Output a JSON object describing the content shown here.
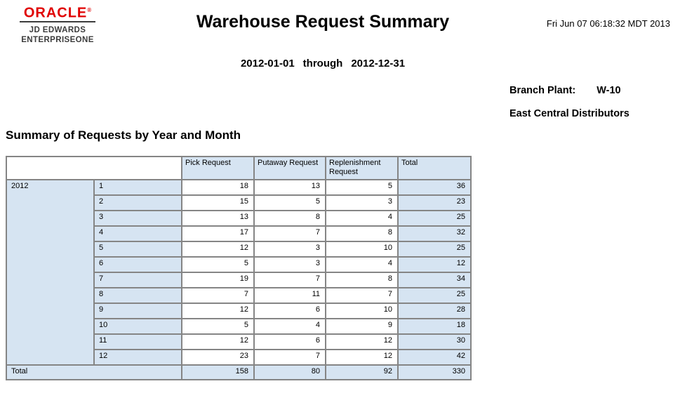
{
  "logo": {
    "brand": "ORACLE",
    "registered": "®",
    "line1": "JD EDWARDS",
    "line2": "ENTERPRISEONE"
  },
  "header": {
    "title": "Warehouse Request Summary",
    "datetime": "Fri Jun 07 06:18:32 MDT 2013",
    "date_range": {
      "from": "2012-01-01",
      "separator": "through",
      "to": "2012-12-31"
    },
    "branch_plant_label": "Branch Plant:",
    "branch_plant_value": "W-10",
    "branch_plant_name": "East Central Distributors"
  },
  "section": {
    "heading": "Summary of Requests by Year and Month"
  },
  "table": {
    "columns": [
      "Pick Request",
      "Putaway Request",
      "Replenishment Request",
      "Total"
    ],
    "year": "2012",
    "rows": [
      {
        "month": "1",
        "pick": "18",
        "putaway": "13",
        "replenishment": "5",
        "total": "36"
      },
      {
        "month": "2",
        "pick": "15",
        "putaway": "5",
        "replenishment": "3",
        "total": "23"
      },
      {
        "month": "3",
        "pick": "13",
        "putaway": "8",
        "replenishment": "4",
        "total": "25"
      },
      {
        "month": "4",
        "pick": "17",
        "putaway": "7",
        "replenishment": "8",
        "total": "32"
      },
      {
        "month": "5",
        "pick": "12",
        "putaway": "3",
        "replenishment": "10",
        "total": "25"
      },
      {
        "month": "6",
        "pick": "5",
        "putaway": "3",
        "replenishment": "4",
        "total": "12"
      },
      {
        "month": "7",
        "pick": "19",
        "putaway": "7",
        "replenishment": "8",
        "total": "34"
      },
      {
        "month": "8",
        "pick": "7",
        "putaway": "11",
        "replenishment": "7",
        "total": "25"
      },
      {
        "month": "9",
        "pick": "12",
        "putaway": "6",
        "replenishment": "10",
        "total": "28"
      },
      {
        "month": "10",
        "pick": "5",
        "putaway": "4",
        "replenishment": "9",
        "total": "18"
      },
      {
        "month": "11",
        "pick": "12",
        "putaway": "6",
        "replenishment": "12",
        "total": "30"
      },
      {
        "month": "12",
        "pick": "23",
        "putaway": "7",
        "replenishment": "12",
        "total": "42"
      }
    ],
    "total_row": {
      "label": "Total",
      "pick": "158",
      "putaway": "80",
      "replenishment": "92",
      "total": "330"
    }
  },
  "colors": {
    "oracle_red": "#e00000",
    "header_blue": "#d6e4f2",
    "border_gray": "#858585",
    "outer_border_gray": "#6f6f6f",
    "logo_charcoal": "#3c3c3c"
  }
}
